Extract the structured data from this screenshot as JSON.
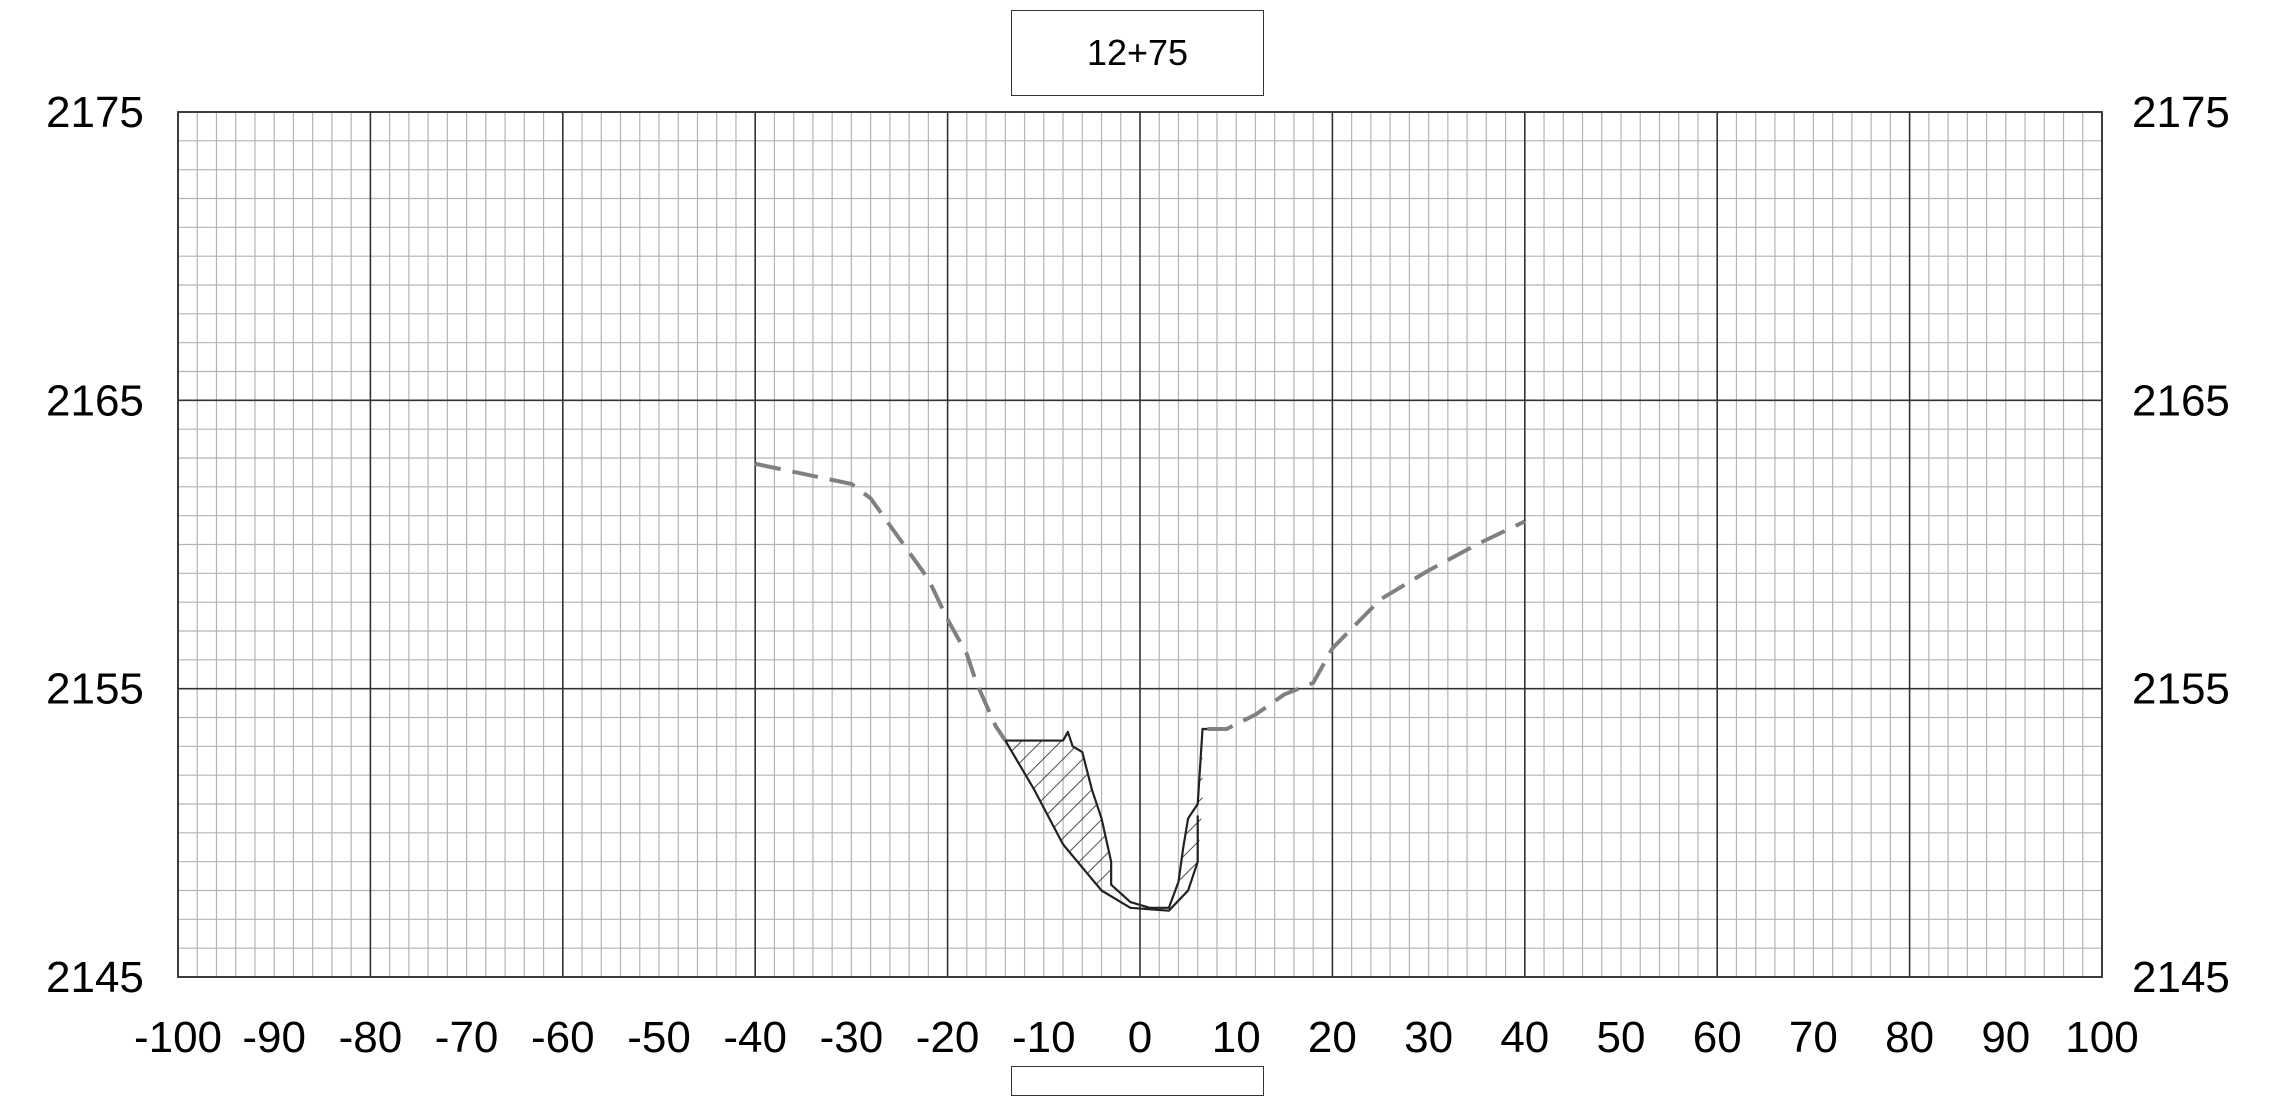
{
  "station_label": "12+75",
  "chart_data": {
    "type": "line",
    "title": "12+75",
    "xlabel": "",
    "ylabel": "",
    "xlim": [
      -100,
      100
    ],
    "ylim": [
      2145,
      2175
    ],
    "x_ticks": [
      -100,
      -90,
      -80,
      -70,
      -60,
      -50,
      -40,
      -30,
      -20,
      -10,
      0,
      10,
      20,
      30,
      40,
      50,
      60,
      70,
      80,
      90,
      100
    ],
    "y_ticks": [
      2175,
      2165,
      2155,
      2145
    ],
    "grid": {
      "major_x": 20,
      "minor_x": 2,
      "major_y": 10,
      "minor_y": 1
    },
    "series": [
      {
        "style": "dashed",
        "color": "#808080",
        "points": [
          [
            -40,
            2162.8
          ],
          [
            -30,
            2162.1
          ],
          [
            -28,
            2161.6
          ],
          [
            -25,
            2160.2
          ],
          [
            -22,
            2158.8
          ],
          [
            -20,
            2157.4
          ],
          [
            -18,
            2156.2
          ],
          [
            -17,
            2155.2
          ],
          [
            -15,
            2153.7
          ],
          [
            -14,
            2153.2
          ]
        ]
      },
      {
        "style": "dashed",
        "color": "#808080",
        "points": [
          [
            7,
            2153.6
          ],
          [
            9,
            2153.6
          ],
          [
            12,
            2154.1
          ],
          [
            15,
            2154.8
          ],
          [
            18,
            2155.2
          ],
          [
            20,
            2156.4
          ],
          [
            25,
            2158.1
          ],
          [
            30,
            2159.1
          ],
          [
            35,
            2160.0
          ],
          [
            40,
            2160.8
          ]
        ]
      },
      {
        "style": "solid",
        "color": "#222222",
        "points": [
          [
            -14,
            2153.2
          ],
          [
            -8,
            2153.2
          ],
          [
            -7.5,
            2153.5
          ],
          [
            -7,
            2153.0
          ],
          [
            -6,
            2152.8
          ],
          [
            -5,
            2151.5
          ],
          [
            -4,
            2150.5
          ],
          [
            -3,
            2149.0
          ],
          [
            -3,
            2148.2
          ],
          [
            -1,
            2147.6
          ],
          [
            1,
            2147.4
          ],
          [
            3,
            2147.4
          ],
          [
            4,
            2148.3
          ],
          [
            4.5,
            2149.5
          ],
          [
            5,
            2150.5
          ],
          [
            6,
            2151.0
          ],
          [
            6.5,
            2153.6
          ],
          [
            7,
            2153.6
          ]
        ]
      },
      {
        "style": "solid",
        "color": "#222222",
        "points": [
          [
            -14,
            2153.2
          ],
          [
            -11,
            2151.5
          ],
          [
            -8,
            2149.6
          ],
          [
            -6,
            2148.8
          ],
          [
            -4,
            2148.0
          ],
          [
            -1,
            2147.4
          ],
          [
            3,
            2147.3
          ],
          [
            5,
            2148.0
          ],
          [
            6,
            2149.0
          ],
          [
            6,
            2150.6
          ]
        ]
      }
    ],
    "hatched_regions": [
      [
        [
          -14,
          2153.2
        ],
        [
          -8,
          2153.2
        ],
        [
          -7.5,
          2153.5
        ],
        [
          -7,
          2153.0
        ],
        [
          -6,
          2152.8
        ],
        [
          -5,
          2151.5
        ],
        [
          -4,
          2150.5
        ],
        [
          -3,
          2149.0
        ],
        [
          -3,
          2148.2
        ],
        [
          -4,
          2148.0
        ],
        [
          -6,
          2148.8
        ],
        [
          -8,
          2149.6
        ],
        [
          -11,
          2151.5
        ]
      ],
      [
        [
          4,
          2148.3
        ],
        [
          4.5,
          2149.5
        ],
        [
          5,
          2150.5
        ],
        [
          6,
          2151.0
        ],
        [
          6.5,
          2153.6
        ],
        [
          6.5,
          2151.0
        ],
        [
          6,
          2149.0
        ],
        [
          5,
          2148.0
        ]
      ]
    ]
  }
}
